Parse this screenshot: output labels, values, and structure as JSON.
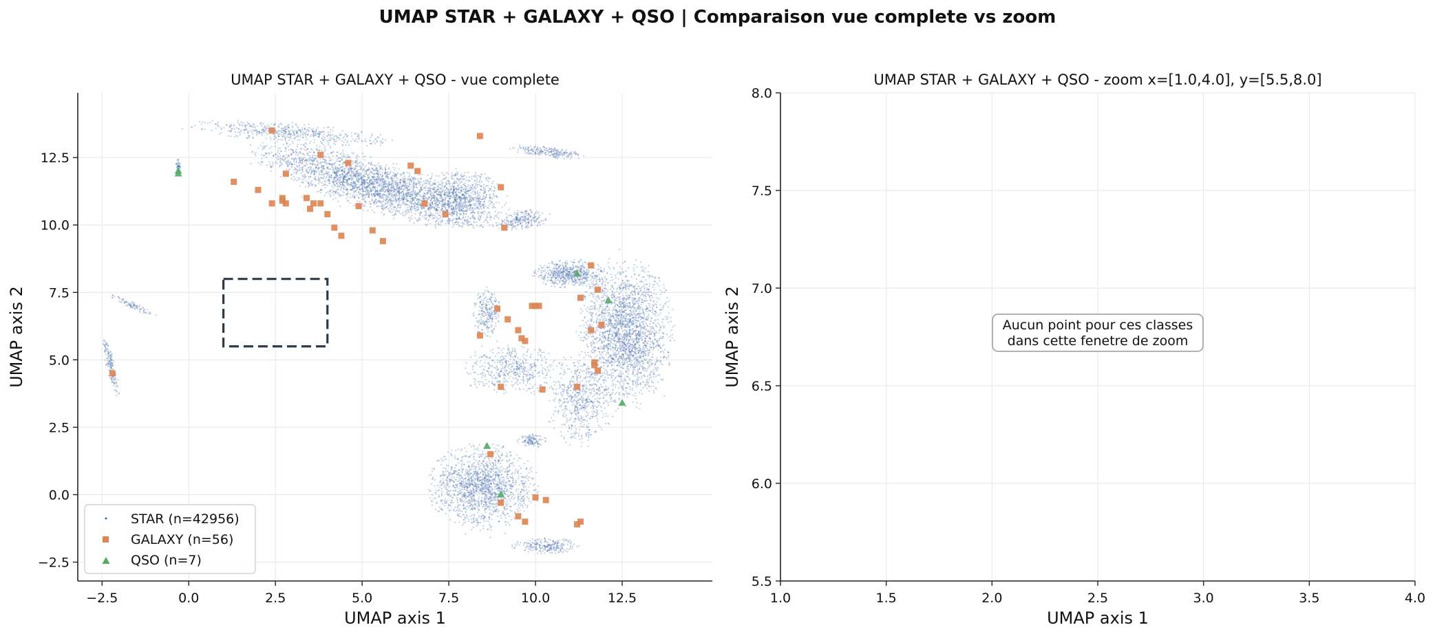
{
  "figure": {
    "suptitle": "UMAP STAR + GALAXY + QSO | Comparaison vue complete vs zoom"
  },
  "colors": {
    "star": "#4c72b0",
    "galaxy": "#dd8452",
    "qso": "#55a868",
    "zoom_box": "#2d3a4a",
    "grid": "#e6e6e6"
  },
  "chart_data": [
    {
      "type": "scatter",
      "title": "UMAP STAR + GALAXY + QSO - vue complete",
      "xlabel": "UMAP axis 1",
      "ylabel": "UMAP axis 2",
      "xlim": [
        -3.2,
        15.1
      ],
      "ylim": [
        -3.2,
        14.9
      ],
      "xticks": [
        -2.5,
        0.0,
        2.5,
        5.0,
        7.5,
        10.0,
        12.5
      ],
      "xtick_labels": [
        "−2.5",
        "0.0",
        "2.5",
        "5.0",
        "7.5",
        "10.0",
        "12.5"
      ],
      "yticks": [
        -2.5,
        0.0,
        2.5,
        5.0,
        7.5,
        10.0,
        12.5
      ],
      "ytick_labels": [
        "−2.5",
        "0.0",
        "2.5",
        "5.0",
        "7.5",
        "10.0",
        "12.5"
      ],
      "grid": true,
      "legend_position": "lower-left",
      "zoom_box": {
        "x": [
          1.0,
          4.0
        ],
        "y": [
          5.5,
          8.0
        ]
      },
      "star_regions": [
        {
          "cx": 5.3,
          "cy": 11.5,
          "rx": 3.5,
          "ry": 0.9,
          "angle": -22,
          "n": 2600
        },
        {
          "cx": 7.8,
          "cy": 11.0,
          "rx": 1.3,
          "ry": 1.0,
          "angle": 0,
          "n": 900
        },
        {
          "cx": 3.0,
          "cy": 13.4,
          "rx": 2.8,
          "ry": 0.35,
          "angle": -6,
          "n": 500
        },
        {
          "cx": 10.4,
          "cy": 12.7,
          "rx": 1.1,
          "ry": 0.2,
          "angle": -8,
          "n": 220
        },
        {
          "cx": 9.6,
          "cy": 10.2,
          "rx": 0.8,
          "ry": 0.35,
          "angle": 12,
          "n": 250
        },
        {
          "cx": 12.6,
          "cy": 6.0,
          "rx": 1.3,
          "ry": 2.6,
          "angle": 0,
          "n": 2400
        },
        {
          "cx": 11.0,
          "cy": 8.2,
          "rx": 1.0,
          "ry": 0.5,
          "angle": 0,
          "n": 600
        },
        {
          "cx": 11.3,
          "cy": 3.5,
          "rx": 0.9,
          "ry": 1.6,
          "angle": 0,
          "n": 600
        },
        {
          "cx": 9.4,
          "cy": 4.6,
          "rx": 1.4,
          "ry": 0.9,
          "angle": 0,
          "n": 500
        },
        {
          "cx": 8.6,
          "cy": 6.8,
          "rx": 0.4,
          "ry": 0.9,
          "angle": 0,
          "n": 250
        },
        {
          "cx": 8.5,
          "cy": 0.3,
          "rx": 1.5,
          "ry": 1.5,
          "angle": 0,
          "n": 1600
        },
        {
          "cx": 10.3,
          "cy": -1.9,
          "rx": 0.9,
          "ry": 0.3,
          "angle": 0,
          "n": 250
        },
        {
          "cx": 9.9,
          "cy": 2.0,
          "rx": 0.4,
          "ry": 0.25,
          "angle": 0,
          "n": 120
        },
        {
          "cx": -2.25,
          "cy": 4.8,
          "rx": 0.12,
          "ry": 1.1,
          "angle": 10,
          "n": 160
        },
        {
          "cx": -1.6,
          "cy": 7.0,
          "rx": 0.7,
          "ry": 0.12,
          "angle": -30,
          "n": 90
        },
        {
          "cx": -0.3,
          "cy": 12.2,
          "rx": 0.08,
          "ry": 0.25,
          "angle": 0,
          "n": 40
        }
      ],
      "series": [
        {
          "name": "STAR (n=42956)",
          "marker": "point",
          "n": 42956
        },
        {
          "name": "GALAXY (n=56)",
          "marker": "square",
          "x": [
            2.4,
            1.3,
            2.0,
            2.8,
            2.4,
            2.7,
            2.8,
            3.4,
            3.5,
            3.6,
            3.8,
            4.0,
            4.2,
            4.4,
            4.9,
            5.3,
            5.6,
            3.8,
            4.6,
            6.4,
            6.6,
            6.8,
            7.4,
            8.4,
            9.0,
            9.1,
            2.7,
            -2.2,
            8.4,
            8.9,
            9.2,
            9.5,
            9.6,
            9.7,
            9.9,
            10.0,
            10.1,
            11.3,
            11.6,
            11.8,
            11.9,
            11.6,
            11.7,
            11.8,
            11.2,
            11.7,
            10.2,
            9.0,
            8.7,
            9.0,
            10.0,
            10.3,
            9.5,
            9.7,
            11.3,
            11.2
          ],
          "y": [
            13.5,
            11.6,
            11.3,
            11.9,
            10.8,
            11.0,
            10.8,
            11.0,
            10.6,
            10.8,
            10.8,
            10.4,
            9.9,
            9.6,
            10.7,
            9.8,
            9.4,
            12.6,
            12.3,
            12.2,
            12.0,
            10.8,
            10.4,
            13.3,
            11.4,
            9.9,
            10.9,
            4.5,
            5.9,
            6.9,
            6.5,
            6.1,
            5.8,
            5.7,
            7.0,
            7.0,
            7.0,
            7.3,
            8.5,
            7.6,
            6.3,
            6.1,
            4.9,
            4.6,
            4.0,
            4.8,
            3.9,
            4.0,
            1.5,
            -0.3,
            -0.1,
            -0.2,
            -0.8,
            -1.0,
            -1.0,
            -1.1
          ]
        },
        {
          "name": "QSO (n=7)",
          "marker": "triangle",
          "x": [
            -0.3,
            11.2,
            12.1,
            12.5,
            8.6,
            9.0,
            -0.3
          ],
          "y": [
            11.9,
            8.2,
            7.2,
            3.4,
            1.8,
            0.0,
            12.0
          ]
        }
      ]
    },
    {
      "type": "scatter",
      "title": "UMAP STAR + GALAXY + QSO - zoom x=[1.0,4.0], y=[5.5,8.0]",
      "xlabel": "UMAP axis 1",
      "ylabel": "UMAP axis 2",
      "xlim": [
        1.0,
        4.0
      ],
      "ylim": [
        5.5,
        8.0
      ],
      "xticks": [
        1.0,
        1.5,
        2.0,
        2.5,
        3.0,
        3.5,
        4.0
      ],
      "xtick_labels": [
        "1.0",
        "1.5",
        "2.0",
        "2.5",
        "3.0",
        "3.5",
        "4.0"
      ],
      "yticks": [
        5.5,
        6.0,
        6.5,
        7.0,
        7.5,
        8.0
      ],
      "ytick_labels": [
        "5.5",
        "6.0",
        "6.5",
        "7.0",
        "7.5",
        "8.0"
      ],
      "grid": true,
      "annotation": {
        "line1": "Aucun point pour ces classes",
        "line2": "dans cette fenetre de zoom",
        "x": 2.5,
        "y": 6.75
      },
      "series": []
    }
  ]
}
